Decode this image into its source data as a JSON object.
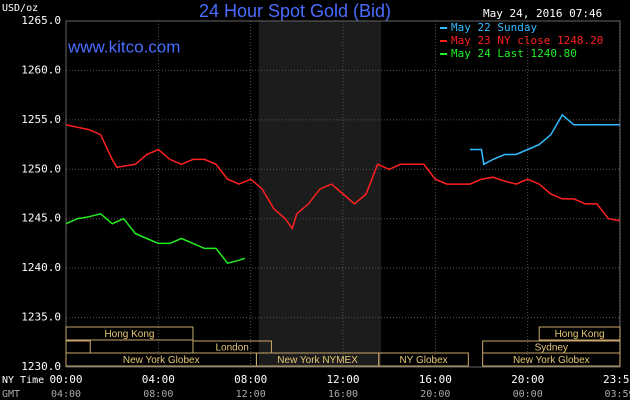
{
  "chart_data": {
    "type": "line",
    "title": "24 Hour Spot Gold (Bid)",
    "timestamp": "May 24, 2016 07:46",
    "watermark": "www.kitco.com",
    "y_label": "USD/oz",
    "x_row_labels": [
      "NY Time",
      "GMT"
    ],
    "xlim": [
      0,
      24
    ],
    "ylim": [
      1230,
      1265
    ],
    "yticks": [
      {
        "value": 1230,
        "label": "1230.0"
      },
      {
        "value": 1235,
        "label": "1235.0"
      },
      {
        "value": 1240,
        "label": "1240.0"
      },
      {
        "value": 1245,
        "label": "1245.0"
      },
      {
        "value": 1250,
        "label": "1250.0"
      },
      {
        "value": 1255,
        "label": "1255.0"
      },
      {
        "value": 1260,
        "label": "1260.0"
      },
      {
        "value": 1265,
        "label": "1265.0"
      }
    ],
    "xticks": [
      {
        "value": 0,
        "label": "00:00"
      },
      {
        "value": 4,
        "label": "04:00"
      },
      {
        "value": 8,
        "label": "08:00"
      },
      {
        "value": 12,
        "label": "12:00"
      },
      {
        "value": 16,
        "label": "16:00"
      },
      {
        "value": 20,
        "label": "20:00"
      },
      {
        "value": 23.98,
        "label": "23:59"
      }
    ],
    "gmt_labels": [
      "04:00",
      "08:00",
      "12:00",
      "16:00",
      "20:00",
      "00:00",
      "03:59"
    ],
    "grid": true,
    "shade_x": [
      8.35,
      13.65
    ],
    "sessions": [
      {
        "name": "Hong Kong",
        "start": 0,
        "end": 5.5,
        "row": 0
      },
      {
        "name": null,
        "start": 0,
        "end": 1.05,
        "row": 1
      },
      {
        "name": "London",
        "start": 5.5,
        "end": 8.9,
        "row": 1
      },
      {
        "name": "New York Globex",
        "start": 0,
        "end": 8.25,
        "row": 2
      },
      {
        "name": "New York NYMEX",
        "start": 8.25,
        "end": 13.55,
        "row": 2
      },
      {
        "name": "NY Globex",
        "start": 13.55,
        "end": 17.43,
        "row": 2
      },
      {
        "name": "Hong Kong",
        "start": 20.5,
        "end": 24,
        "row": 0
      },
      {
        "name": "Sydney",
        "start": 18.05,
        "end": 24,
        "row": 1
      },
      {
        "name": "New York Globex",
        "start": 18.05,
        "end": 24,
        "row": 2
      }
    ],
    "series": [
      {
        "name": "May 22 Sunday",
        "color": "#33bbff",
        "x": [
          17.5,
          18.0,
          18.1,
          18.5,
          19,
          19.5,
          20,
          20.5,
          21,
          21.5,
          22,
          22.5,
          23,
          23.5,
          24
        ],
        "values": [
          1252,
          1252,
          1250.5,
          1251,
          1251.5,
          1251.5,
          1252,
          1252.5,
          1253.5,
          1255.5,
          1254.5,
          1254.5,
          1254.5,
          1254.5,
          1254.5
        ]
      },
      {
        "name": "May 23 NY close 1248.20",
        "color": "#ff2020",
        "x": [
          0,
          1,
          1.5,
          2,
          2.2,
          3,
          3.5,
          4,
          4.5,
          5,
          5.5,
          6,
          6.5,
          7,
          7.5,
          8,
          8.5,
          9,
          9.5,
          9.8,
          10,
          10.5,
          11,
          11.5,
          12,
          12.5,
          13,
          13.5,
          14,
          14.5,
          15,
          15.5,
          16,
          16.5,
          17,
          17.5,
          18,
          18.5,
          19,
          19.5,
          20,
          20.5,
          21,
          21.5,
          22,
          22.5,
          23,
          23.5,
          24
        ],
        "values": [
          1254.5,
          1254,
          1253.5,
          1251,
          1250.2,
          1250.5,
          1251.5,
          1252,
          1251,
          1250.5,
          1251,
          1251,
          1250.5,
          1249,
          1248.5,
          1249,
          1248,
          1246,
          1245,
          1244,
          1245.5,
          1246.5,
          1248,
          1248.5,
          1247.5,
          1246.5,
          1247.5,
          1250.5,
          1250,
          1250.5,
          1250.5,
          1250.5,
          1249,
          1248.5,
          1248.5,
          1248.5,
          1249,
          1249.2,
          1248.8,
          1248.5,
          1249,
          1248.5,
          1247.5,
          1247,
          1247,
          1246.5,
          1246.5,
          1245,
          1244.8
        ]
      },
      {
        "name": "May 24 Last 1240.80",
        "color": "#22ee22",
        "x": [
          0,
          0.5,
          1,
          1.5,
          2,
          2.5,
          3,
          3.5,
          4,
          4.5,
          5,
          5.5,
          6,
          6.5,
          7,
          7.5,
          7.75
        ],
        "values": [
          1244.5,
          1245,
          1245.2,
          1245.5,
          1244.5,
          1245,
          1243.5,
          1243,
          1242.5,
          1242.5,
          1243,
          1242.5,
          1242,
          1242,
          1240.5,
          1240.8,
          1241
        ]
      }
    ]
  }
}
